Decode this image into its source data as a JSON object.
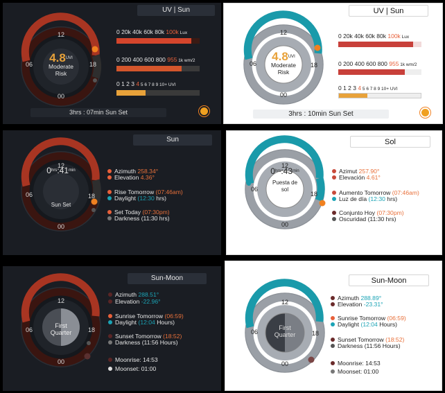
{
  "colors": {
    "orange": "#e8603a",
    "teal": "#1aa3b5",
    "amber": "#e8a23a",
    "dark_bg": "#1a1d23"
  },
  "hour_labels": {
    "top": "12",
    "left": "06",
    "right": "18",
    "bottom": "00"
  },
  "uv_panels": [
    {
      "title": "UV | Sun",
      "uv_value": "4.8",
      "uv_unit": "UVI",
      "risk_line1": "Moderate",
      "risk_line2": "Risk",
      "lux_scale": {
        "pre": "0 20k 40k 60k 80k ",
        "hl": "100k",
        "post": " Lux",
        "fill": 0.9
      },
      "wm2_scale": {
        "pre": "0 200 400 600 800 ",
        "hl": "955",
        "post": " 1k wm/2",
        "fill": 0.78
      },
      "uvi_scale": {
        "pre": "0 1 2 3 ",
        "hl": "4",
        "post": " 5 6 7 8 9 10+ UVI",
        "fill": 0.35
      },
      "sunset": "3hrs : 07min Sun Set",
      "sun_icon": "sun-icon"
    },
    {
      "title": "UV | Sun",
      "uv_value": "4.8",
      "uv_unit": "UVI",
      "risk_line1": "Moderate",
      "risk_line2": "Risk",
      "lux_scale": {
        "pre": "0 20k 40k 60k 80k ",
        "hl": "100k",
        "post": " Lux",
        "fill": 0.9
      },
      "wm2_scale": {
        "pre": "0 200 400 600 800 ",
        "hl": "955",
        "post": " 1k wm/2",
        "fill": 0.8
      },
      "uvi_scale": {
        "pre": "0 1 2 3 ",
        "hl": "4",
        "post": " 5 6 7 8 9 10+ UVI",
        "fill": 0.35
      },
      "sunset": "3hrs : 10min Sun Set",
      "sun_icon": "sun-icon"
    }
  ],
  "sun_panels": [
    {
      "title": "Sun",
      "hours": "0",
      "hrs_unit": "hrs",
      "minutes": "41",
      "min_unit": "min",
      "label": "Sun Set",
      "az_label": "Azimuth",
      "az_value": "258.34°",
      "el_label": "Elevation",
      "el_value": "4.36°",
      "rise_label": "Rise Tomorrow",
      "rise_value": "(07:46am)",
      "day_label": "Daylight",
      "day_value": "(12:30",
      "day_unit": "hrs)",
      "set_label": "Set Today",
      "set_value": "(07:30pm)",
      "dark_label": "Darkness",
      "dark_value": "(11:30 hrs)"
    },
    {
      "title": "Sol",
      "hours": "0",
      "hrs_unit": "hrs",
      "minutes": "43",
      "min_unit": "min",
      "label": "Puesta de sol",
      "az_label": "Azimut",
      "az_value": "257.90°",
      "el_label": "Elevación",
      "el_value": "4.61°",
      "rise_label": "Aumento Tomorrow",
      "rise_value": "(07:46am)",
      "day_label": "Luz de día",
      "day_value": "(12:30",
      "day_unit": "hrs)",
      "set_label": "Conjunto Hoy",
      "set_value": "(07:30pm)",
      "dark_label": "Oscuridad",
      "dark_value": "(11:30 hrs)"
    }
  ],
  "moon_panels": [
    {
      "title": "Sun-Moon",
      "phase": "First Quarter",
      "az_label": "Azimuth",
      "az_value": "288.51°",
      "el_label": "Elevation",
      "el_value": "-22.96°",
      "rise_label": "Sunrise Tomorrow",
      "rise_value": "(06:59)",
      "day_label": "Daylight",
      "day_value": "(12:04",
      "day_unit": "Hours)",
      "set_label": "Sunset Tomorrow",
      "set_value": "(18:52)",
      "dark_label": "Darkness",
      "dark_value": "(11:56 Hours)",
      "moonrise": "Moonrise: 14:53",
      "moonset": "Moonset: 01:00"
    },
    {
      "title": "Sun-Moon",
      "phase": "First Quarter",
      "az_label": "Azimuth",
      "az_value": "288.89°",
      "el_label": "Elevation",
      "el_value": "-23.31°",
      "rise_label": "Sunrise Tomorrow",
      "rise_value": "(06:59)",
      "day_label": "Daylight",
      "day_value": "(12:04",
      "day_unit": "Hours)",
      "set_label": "Sunset Tomorrow",
      "set_value": "(18:52)",
      "dark_label": "Darkness",
      "dark_value": "(11:56 Hours)",
      "moonrise": "Moonrise: 14:53",
      "moonset": "Moonset: 01:00"
    }
  ]
}
